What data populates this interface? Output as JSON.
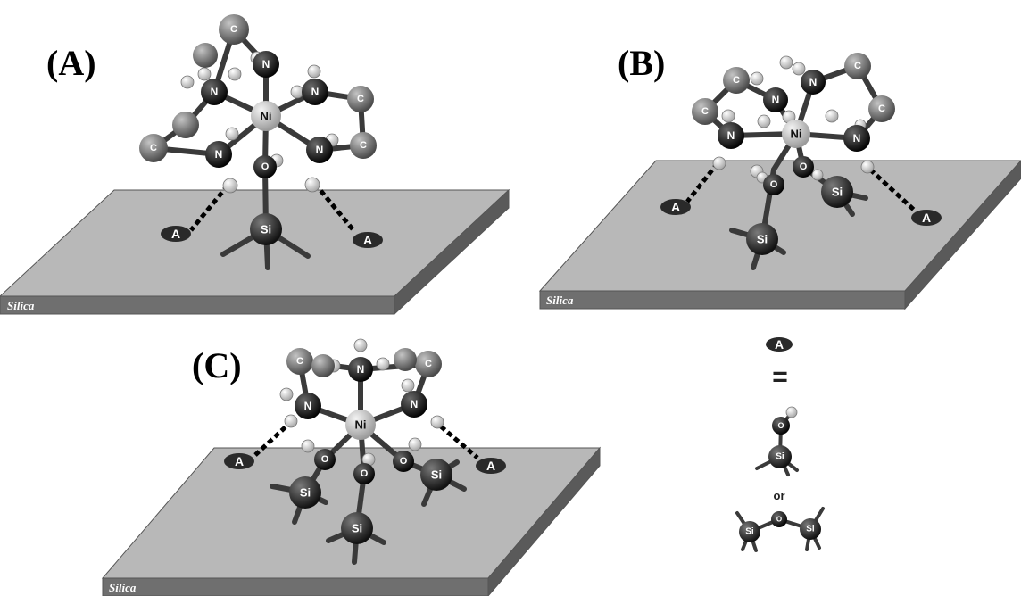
{
  "panels": {
    "a": {
      "label": "(A)",
      "surface": "Silica"
    },
    "b": {
      "label": "(B)",
      "surface": "Silica"
    },
    "c": {
      "label": "(C)",
      "surface": "Silica"
    }
  },
  "atoms": {
    "ni": "Ni",
    "n": "N",
    "c": "C",
    "o": "O",
    "si": "Si",
    "a": "A"
  },
  "legend": {
    "symbol": "A",
    "equals": "=",
    "or": "or"
  }
}
